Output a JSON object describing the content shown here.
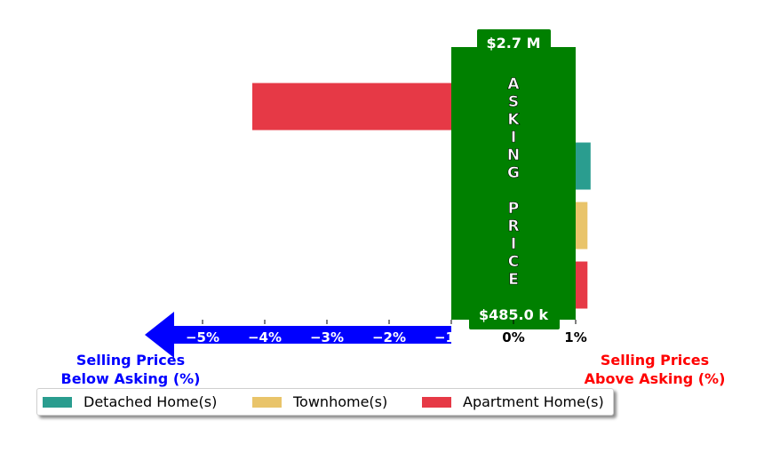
{
  "chart_data": {
    "type": "bar",
    "orientation": "horizontal",
    "xlim": [
      -7,
      2.2
    ],
    "x_ticks": [
      -5,
      -4,
      -3,
      -2,
      -1,
      0,
      1
    ],
    "x_tick_labels": [
      "−5%",
      "−4%",
      "−3%",
      "−2%",
      "−1%",
      "0%",
      "1%"
    ],
    "rows": [
      {
        "name": "Apartment Home(s)",
        "value": -4.2
      },
      {
        "name": "Detached Home(s)",
        "value": 1.24
      },
      {
        "name": "Townhome(s)",
        "value": 1.19
      },
      {
        "name": "Apartment Home(s)",
        "value": 1.19
      }
    ],
    "asking_price_label": "ASKING PRICE",
    "top_price_label": "$2.7 M",
    "bottom_price_label": "$485.0 k",
    "below_label": "Selling Prices\nBelow Asking (%)",
    "above_label": "Selling Prices\nAbove Asking (%)",
    "legend_position": "lower-left",
    "grid": false
  },
  "legend": [
    {
      "label": "Detached Home(s)",
      "color": "#2a9d8f"
    },
    {
      "label": "Townhome(s)",
      "color": "#e9c46a"
    },
    {
      "label": "Apartment Home(s)",
      "color": "#e63946"
    }
  ],
  "colors": {
    "asking": "#008000",
    "below_arrow": "#0000ff",
    "below_text": "#0000ff",
    "above_text": "#ff0000"
  }
}
